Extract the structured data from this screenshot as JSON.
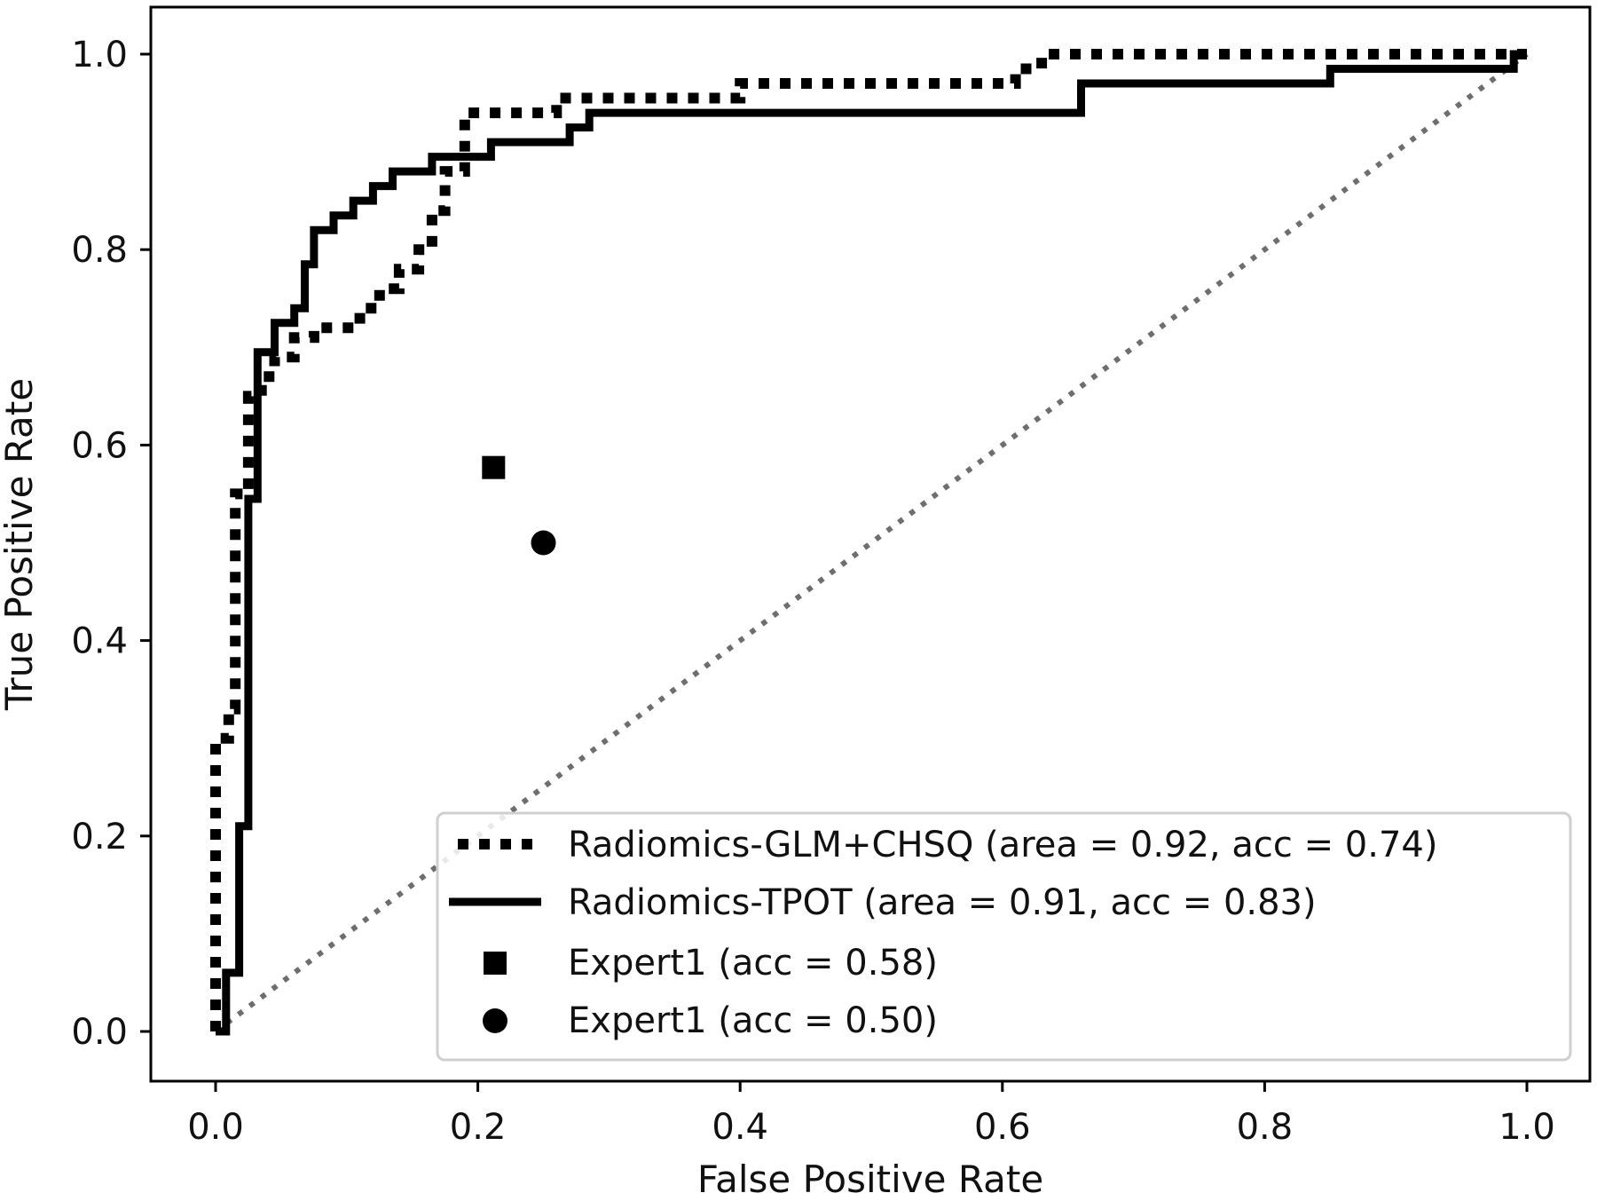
{
  "chart_data": {
    "type": "line",
    "title": "",
    "xlabel": "False Positive Rate",
    "ylabel": "True Positive Rate",
    "xlim": [
      0.0,
      1.0
    ],
    "ylim": [
      0.0,
      1.0
    ],
    "xticks": [
      "0.0",
      "0.2",
      "0.4",
      "0.6",
      "0.8",
      "1.0"
    ],
    "yticks": [
      "0.0",
      "0.2",
      "0.4",
      "0.6",
      "0.8",
      "1.0"
    ],
    "grid": false,
    "legend_position": "bottom-right",
    "series": [
      {
        "name": "Radiomics-GLM+CHSQ (area = 0.92, acc = 0.74)",
        "style": "dotted",
        "color": "#000000",
        "x": [
          0.0,
          0.0,
          0.01,
          0.01,
          0.015,
          0.015,
          0.025,
          0.025,
          0.035,
          0.035,
          0.045,
          0.045,
          0.06,
          0.06,
          0.075,
          0.075,
          0.11,
          0.11,
          0.125,
          0.125,
          0.14,
          0.14,
          0.155,
          0.155,
          0.165,
          0.165,
          0.175,
          0.175,
          0.19,
          0.19,
          0.26,
          0.26,
          0.4,
          0.4,
          0.61,
          0.61,
          0.63,
          0.63,
          1.0
        ],
        "y": [
          0.0,
          0.3,
          0.3,
          0.33,
          0.33,
          0.55,
          0.55,
          0.65,
          0.65,
          0.67,
          0.67,
          0.69,
          0.69,
          0.71,
          0.71,
          0.72,
          0.72,
          0.74,
          0.74,
          0.76,
          0.76,
          0.78,
          0.78,
          0.8,
          0.8,
          0.84,
          0.84,
          0.88,
          0.88,
          0.94,
          0.94,
          0.955,
          0.955,
          0.97,
          0.97,
          0.985,
          0.985,
          1.0,
          1.0
        ]
      },
      {
        "name": "Radiomics-TPOT (area = 0.91, acc = 0.83)",
        "style": "solid",
        "color": "#000000",
        "x": [
          0.0,
          0.008,
          0.008,
          0.018,
          0.018,
          0.025,
          0.025,
          0.032,
          0.032,
          0.045,
          0.045,
          0.06,
          0.06,
          0.068,
          0.068,
          0.075,
          0.075,
          0.09,
          0.09,
          0.105,
          0.105,
          0.12,
          0.12,
          0.135,
          0.135,
          0.165,
          0.165,
          0.21,
          0.21,
          0.27,
          0.27,
          0.285,
          0.285,
          0.66,
          0.66,
          0.85,
          0.85,
          0.99,
          0.99,
          1.0
        ],
        "y": [
          0.0,
          0.0,
          0.06,
          0.06,
          0.21,
          0.21,
          0.545,
          0.545,
          0.695,
          0.695,
          0.725,
          0.725,
          0.74,
          0.74,
          0.785,
          0.785,
          0.82,
          0.82,
          0.835,
          0.835,
          0.85,
          0.85,
          0.865,
          0.865,
          0.88,
          0.88,
          0.895,
          0.895,
          0.91,
          0.91,
          0.925,
          0.925,
          0.94,
          0.94,
          0.97,
          0.97,
          0.985,
          0.985,
          1.0,
          1.0
        ]
      },
      {
        "name": "",
        "style": "diagonal-dotted",
        "color": "#6e6e6e",
        "x": [
          0.0,
          1.0
        ],
        "y": [
          0.0,
          1.0
        ]
      }
    ],
    "points": [
      {
        "name": "Expert1 (acc = 0.58)",
        "marker": "square",
        "x": 0.212,
        "y": 0.577
      },
      {
        "name": "Expert1 (acc = 0.50)",
        "marker": "circle",
        "x": 0.25,
        "y": 0.5
      }
    ]
  }
}
